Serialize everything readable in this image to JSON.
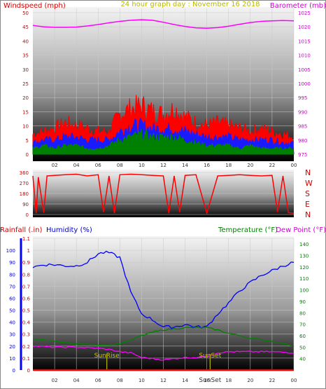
{
  "header": {
    "wind_label": "Windspeed (mph)",
    "title": "24 hour graph day : November 16 2018",
    "baro_label": "Barometer (mb)"
  },
  "colors": {
    "wind_gust": "#ff0000",
    "wind_avg": "#1a1aff",
    "wind_low": "#008000",
    "barometer": "#ff00ff",
    "direction": "#ff0000",
    "humidity": "#0000ff",
    "temperature": "#008000",
    "dew_point": "#ff00ff",
    "rainfall": "#ff0000",
    "sun": "#b8b800"
  },
  "bottom_labels": {
    "rainfall": "Rainfall (.in)",
    "humidity": "Humidity (%)",
    "temperature": "Temperature (°F)",
    "dew_point": "Dew Point (°F)",
    "sunrise": "SunRise",
    "sunset": "SunSet",
    "sunset_axis": "SunSet"
  },
  "direction_labels": [
    "N",
    "W",
    "S",
    "E",
    "N"
  ],
  "x_ticks": [
    "02",
    "04",
    "06",
    "08",
    "10",
    "12",
    "14",
    "16",
    "18",
    "20",
    "22",
    "00"
  ],
  "x_ticks_bottom": [
    "02",
    "04",
    "06",
    "08",
    "10",
    "12",
    "14",
    "16",
    "18",
    "20",
    "22",
    "00"
  ],
  "chart_data": [
    {
      "type": "line",
      "title": "24 hour graph day : November 16 2018",
      "xlabel": "",
      "x_range": [
        0,
        24
      ],
      "y_left": {
        "label": "Windspeed (mph)",
        "range": [
          0,
          50
        ],
        "ticks": [
          0,
          5,
          10,
          15,
          20,
          25,
          30,
          35,
          40,
          45,
          50
        ]
      },
      "y_right": {
        "label": "Barometer (mb)",
        "range": [
          975,
          1025
        ],
        "ticks": [
          975,
          980,
          985,
          990,
          995,
          1000,
          1005,
          1010,
          1015,
          1020,
          1025
        ]
      },
      "series": [
        {
          "name": "Barometer",
          "axis": "right",
          "x": [
            0,
            1,
            2,
            3,
            4,
            5,
            6,
            7,
            8,
            9,
            10,
            11,
            12,
            13,
            14,
            15,
            16,
            17,
            18,
            19,
            20,
            21,
            22,
            23,
            24
          ],
          "values": [
            1020.5,
            1020.0,
            1019.8,
            1019.8,
            1019.9,
            1020.3,
            1020.8,
            1021.4,
            1021.9,
            1022.3,
            1022.5,
            1022.3,
            1021.6,
            1020.8,
            1020.1,
            1019.6,
            1019.5,
            1019.7,
            1020.2,
            1020.9,
            1021.5,
            1021.9,
            1022.1,
            1022.2,
            1022.1
          ]
        },
        {
          "name": "Wind gust",
          "axis": "left",
          "x": [
            0,
            1,
            2,
            3,
            4,
            5,
            6,
            7,
            8,
            9,
            10,
            11,
            12,
            13,
            14,
            15,
            16,
            17,
            18,
            19,
            20,
            21,
            22,
            23,
            24
          ],
          "values": [
            7,
            8,
            9,
            11,
            10,
            9,
            8,
            8,
            14,
            16,
            17,
            15,
            14,
            16,
            13,
            11,
            10,
            11,
            10,
            9,
            8,
            9,
            8,
            7,
            6
          ]
        },
        {
          "name": "Wind average",
          "axis": "left",
          "x": [
            0,
            1,
            2,
            3,
            4,
            5,
            6,
            7,
            8,
            9,
            10,
            11,
            12,
            13,
            14,
            15,
            16,
            17,
            18,
            19,
            20,
            21,
            22,
            23,
            24
          ],
          "values": [
            4,
            5,
            5,
            6,
            6,
            5,
            5,
            5,
            8,
            10,
            10,
            9,
            9,
            9,
            8,
            7,
            6,
            6,
            6,
            5,
            5,
            5,
            5,
            4,
            4
          ]
        },
        {
          "name": "Wind low",
          "axis": "left",
          "x": [
            0,
            1,
            2,
            3,
            4,
            5,
            6,
            7,
            8,
            9,
            10,
            11,
            12,
            13,
            14,
            15,
            16,
            17,
            18,
            19,
            20,
            21,
            22,
            23,
            24
          ],
          "values": [
            2,
            3,
            2,
            3,
            3,
            2,
            2,
            3,
            5,
            6,
            7,
            6,
            6,
            6,
            5,
            4,
            3,
            3,
            3,
            2,
            3,
            2,
            2,
            2,
            2
          ]
        }
      ]
    },
    {
      "type": "line",
      "xlabel": "",
      "x_range": [
        0,
        24
      ],
      "y_left": {
        "range": [
          0,
          360
        ],
        "ticks": [
          0,
          90,
          180,
          270,
          360
        ]
      },
      "y_right": {
        "tick_labels": [
          "N",
          "W",
          "S",
          "E",
          "N"
        ]
      },
      "series": [
        {
          "name": "Wind direction",
          "x": [
            0,
            0.3,
            0.5,
            1,
            1.3,
            2,
            3,
            4,
            5,
            6,
            6.5,
            7,
            7.5,
            8,
            9,
            10,
            11,
            12,
            12.5,
            13,
            13.5,
            14,
            15,
            16,
            17,
            18,
            19,
            20,
            21,
            22,
            22.5,
            23,
            23.5,
            24
          ],
          "values": [
            330,
            10,
            320,
            15,
            330,
            335,
            340,
            345,
            330,
            340,
            20,
            330,
            10,
            340,
            345,
            340,
            335,
            330,
            10,
            330,
            20,
            335,
            340,
            10,
            330,
            335,
            340,
            335,
            330,
            335,
            20,
            330,
            15,
            10
          ]
        }
      ]
    },
    {
      "type": "line",
      "xlabel": "",
      "x_range": [
        0,
        24
      ],
      "y_axes": [
        {
          "label": "Rainfall (.in)",
          "range": [
            0,
            1.1
          ],
          "ticks": [
            0,
            0.1,
            0.2,
            0.3,
            0.4,
            0.5,
            0.6,
            0.7,
            0.8,
            0.9,
            1,
            1.1
          ]
        },
        {
          "label": "Humidity (%)",
          "range": [
            0,
            110
          ],
          "ticks": [
            0,
            10,
            20,
            30,
            40,
            50,
            60,
            70,
            80,
            90,
            100
          ]
        },
        {
          "label": "Temperature (°F) / Dew Point (°F)",
          "range": [
            30,
            145
          ],
          "ticks": [
            40,
            50,
            60,
            70,
            80,
            90,
            100,
            110,
            120,
            130,
            140
          ]
        }
      ],
      "sunrise_hour": 6.8,
      "sunset_hour": 16.3,
      "series": [
        {
          "name": "Humidity",
          "axis": "humidity",
          "x": [
            0,
            1,
            2,
            3,
            4,
            5,
            6,
            6.5,
            7,
            8,
            9,
            10,
            11,
            12,
            13,
            14,
            15,
            16,
            17,
            18,
            19,
            20,
            21,
            22,
            23,
            24
          ],
          "values": [
            86,
            88,
            88,
            87,
            87,
            90,
            97,
            98,
            98,
            94,
            65,
            47,
            42,
            36,
            36,
            38,
            36,
            36,
            47,
            56,
            66,
            73,
            79,
            83,
            87,
            90
          ]
        },
        {
          "name": "Temperature",
          "axis": "temperature",
          "x": [
            0,
            2,
            4,
            6,
            7,
            8,
            9,
            10,
            11,
            12,
            13,
            14,
            15,
            16,
            17,
            18,
            20,
            22,
            24
          ],
          "values": [
            57,
            55,
            53,
            52,
            52,
            53,
            56,
            60,
            63,
            65,
            66,
            67,
            67,
            67,
            65,
            62,
            58,
            55,
            51
          ]
        },
        {
          "name": "Dew Point",
          "axis": "temperature",
          "x": [
            0,
            2,
            4,
            6,
            7,
            8,
            9,
            10,
            11,
            12,
            13,
            14,
            15,
            16,
            17,
            18,
            20,
            22,
            24
          ],
          "values": [
            51,
            50,
            50,
            49,
            48,
            46,
            45,
            41,
            40,
            39,
            40,
            41,
            41,
            42,
            45,
            46,
            46,
            46,
            45
          ]
        },
        {
          "name": "Rainfall",
          "axis": "rainfall",
          "x": [
            0,
            24
          ],
          "values": [
            0,
            0
          ]
        }
      ]
    }
  ]
}
